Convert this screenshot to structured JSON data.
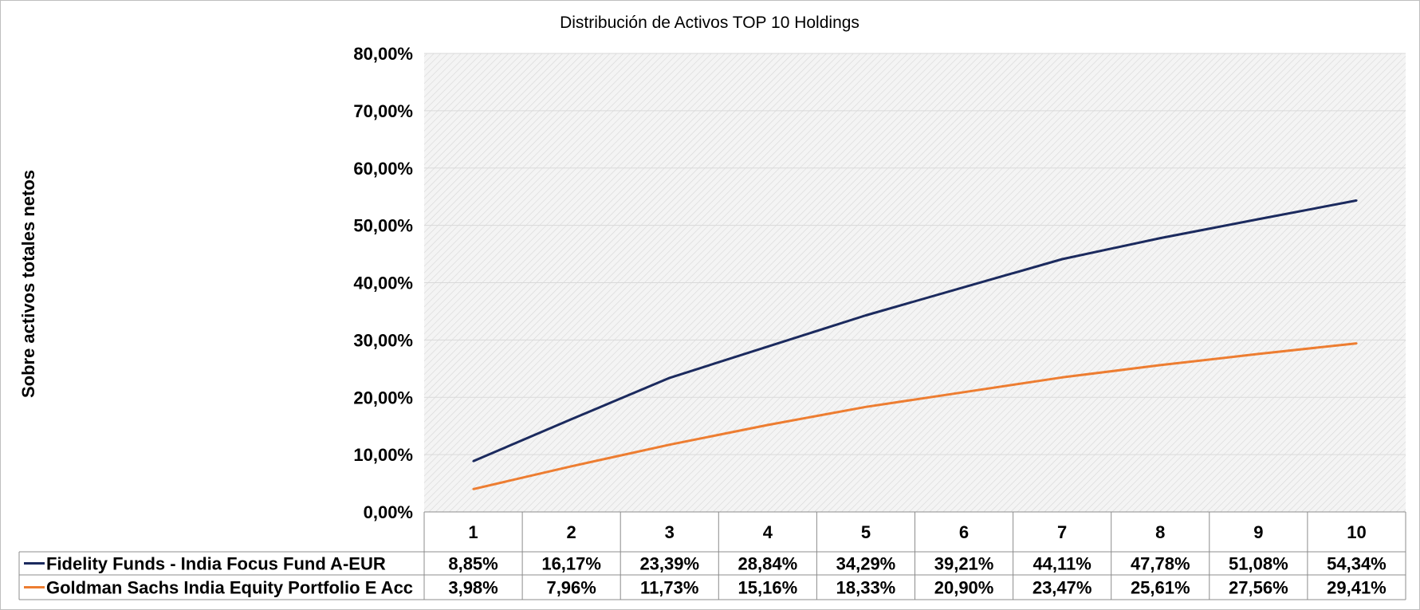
{
  "chart_data": {
    "type": "line",
    "title": "Distribución de Activos TOP 10 Holdings",
    "ylabel": "Sobre activos totales netos",
    "xlabel": "",
    "ylim": [
      0,
      80
    ],
    "yticks": [
      "80,00%",
      "70,00%",
      "60,00%",
      "50,00%",
      "40,00%",
      "30,00%",
      "20,00%",
      "10,00%",
      "0,00%"
    ],
    "categories": [
      "1",
      "2",
      "3",
      "4",
      "5",
      "6",
      "7",
      "8",
      "9",
      "10"
    ],
    "grid": true,
    "legend_placement": "bottom data table",
    "series": [
      {
        "name": "Fidelity Funds - India Focus Fund A-EUR",
        "color": "#1b2a5e",
        "values": [
          8.85,
          16.17,
          23.39,
          28.84,
          34.29,
          39.21,
          44.11,
          47.78,
          51.08,
          54.34
        ],
        "labels": [
          "8,85%",
          "16,17%",
          "23,39%",
          "28,84%",
          "34,29%",
          "39,21%",
          "44,11%",
          "47,78%",
          "51,08%",
          "54,34%"
        ]
      },
      {
        "name": "Goldman Sachs India Equity Portfolio E Acc",
        "color": "#ed7d31",
        "values": [
          3.98,
          7.96,
          11.73,
          15.16,
          18.33,
          20.9,
          23.47,
          25.61,
          27.56,
          29.41
        ],
        "labels": [
          "3,98%",
          "7,96%",
          "11,73%",
          "15,16%",
          "18,33%",
          "20,90%",
          "23,47%",
          "25,61%",
          "27,56%",
          "29,41%"
        ]
      }
    ]
  }
}
